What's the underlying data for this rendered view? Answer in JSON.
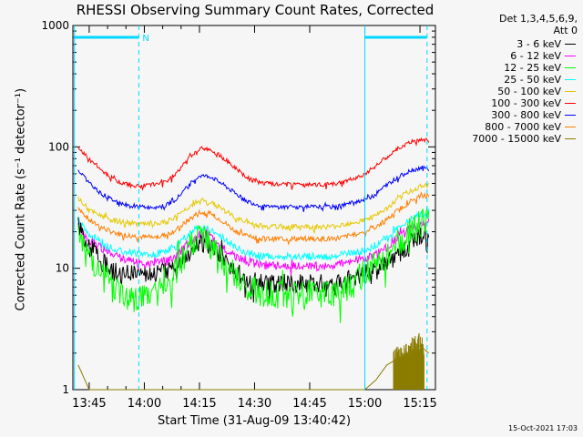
{
  "title": "RHESSI Observing Summary Count Rates, Corrected",
  "legend_header": [
    "Det 1,3,4,5,6,9,",
    "Att 0"
  ],
  "ylabel": "Corrected Count Rate (s⁻¹ detector⁻¹)",
  "xlabel": "Start Time (31-Aug-09 13:40:42)",
  "timestamp": "15-Oct-2021 17:03",
  "colors": {
    "cyan_marker": "#00d8ff"
  },
  "chart_data": {
    "type": "line",
    "yscale": "log",
    "ylim": [
      1,
      1000
    ],
    "xlim_minutes": [
      13.676,
      15.32
    ],
    "yticks": [
      1,
      10,
      100,
      1000
    ],
    "ytick_labels": [
      "1",
      "10",
      "100",
      "1000"
    ],
    "xticks": [
      "13:45",
      "14:00",
      "14:15",
      "14:30",
      "14:45",
      "15:00",
      "15:15"
    ],
    "x_hours": [
      13.7,
      13.75,
      13.8,
      13.85,
      13.9,
      13.95,
      14.0,
      14.05,
      14.1,
      14.15,
      14.2,
      14.25,
      14.3,
      14.35,
      14.4,
      14.45,
      14.5,
      14.55,
      14.6,
      14.65,
      14.7,
      14.75,
      14.8,
      14.85,
      14.9,
      14.95,
      15.0,
      15.05,
      15.1,
      15.15,
      15.2,
      15.25,
      15.29
    ],
    "series": [
      {
        "name": "3 - 6 keV",
        "color": "#000000",
        "values": [
          22,
          15,
          12,
          10,
          9,
          9,
          9,
          9,
          9.5,
          11,
          14,
          16,
          15,
          12,
          10,
          8.5,
          8,
          7.5,
          7.5,
          7.5,
          7.5,
          7.5,
          7.5,
          7.5,
          8,
          8.5,
          9,
          10,
          11,
          13,
          16,
          18,
          19
        ]
      },
      {
        "name": "6 - 12 keV",
        "color": "#ff00ff",
        "values": [
          22,
          17,
          15,
          13,
          12,
          11.5,
          11,
          11,
          11.5,
          13,
          16,
          19,
          18,
          15,
          13,
          11.5,
          11,
          10.5,
          10.5,
          10.5,
          10.5,
          10.5,
          10.5,
          10.5,
          11,
          11.5,
          12,
          13,
          15,
          18,
          21,
          23,
          24
        ]
      },
      {
        "name": "12 - 25 keV",
        "color": "#00ff00",
        "values": [
          20,
          12,
          9,
          7,
          6,
          5.5,
          5.5,
          6,
          7,
          10,
          14,
          18,
          16,
          12,
          9,
          7,
          6.5,
          6,
          6,
          6,
          6,
          6,
          6,
          6,
          6.5,
          7.5,
          9,
          11,
          13,
          16,
          20,
          23,
          25
        ]
      },
      {
        "name": "25 - 50 keV",
        "color": "#00ffff",
        "values": [
          25,
          19,
          17,
          15,
          14,
          13.5,
          13,
          13,
          14,
          15.5,
          19,
          22,
          21,
          18,
          15.5,
          13.5,
          13,
          12.5,
          12.5,
          12.5,
          12.5,
          12.5,
          12.5,
          12.5,
          13,
          13.5,
          14,
          15.5,
          18,
          21,
          25,
          28,
          29
        ]
      },
      {
        "name": "50 - 100 keV",
        "color": "#e6c800",
        "values": [
          38,
          30,
          27,
          25,
          24,
          23.5,
          23,
          23,
          24,
          27,
          32,
          36,
          35,
          31,
          27,
          24,
          23,
          22,
          22,
          22,
          22,
          22,
          22,
          22,
          23,
          24,
          25,
          27,
          31,
          37,
          43,
          47,
          48
        ]
      },
      {
        "name": "100 - 300 keV",
        "color": "#ff0000",
        "values": [
          100,
          80,
          66,
          56,
          50,
          48,
          48,
          49,
          52,
          62,
          80,
          97,
          95,
          83,
          70,
          58,
          52,
          50,
          49,
          49,
          49,
          49,
          49,
          49,
          51,
          55,
          60,
          70,
          82,
          96,
          108,
          115,
          112
        ]
      },
      {
        "name": "300 - 800 keV",
        "color": "#0000ff",
        "values": [
          65,
          50,
          42,
          37,
          34,
          32,
          32,
          32,
          33,
          38,
          48,
          58,
          57,
          50,
          43,
          37,
          34,
          32,
          32,
          32,
          32,
          32,
          32,
          32,
          33,
          35,
          37,
          41,
          49,
          56,
          63,
          67,
          66
        ]
      },
      {
        "name": "800 - 7000 keV",
        "color": "#ff7f00",
        "values": [
          32,
          25,
          22,
          20,
          19,
          18.5,
          18,
          18,
          19,
          21,
          25,
          29,
          28,
          25,
          21,
          19,
          18,
          17.5,
          17.5,
          17.5,
          17.5,
          17.5,
          17.5,
          17.5,
          18,
          19,
          20,
          22,
          25,
          30,
          35,
          39,
          40
        ]
      },
      {
        "name": "7000 - 15000 keV",
        "color": "#8b7d00",
        "values": [
          1.6,
          1,
          1,
          1,
          1,
          1,
          1,
          1,
          1,
          1,
          1,
          1,
          1,
          1,
          1,
          1,
          1,
          1,
          1,
          1,
          1,
          1,
          1,
          1,
          1,
          1,
          1,
          1.2,
          1.6,
          1.8,
          2,
          2.3,
          2
        ]
      }
    ],
    "markers": {
      "saa_flag_label": "N",
      "saa_intervals": [
        [
          13.68,
          13.975
        ],
        [
          15.0,
          15.28
        ]
      ],
      "night_boundaries": [
        13.683,
        13.975,
        15.0,
        15.282
      ]
    }
  }
}
